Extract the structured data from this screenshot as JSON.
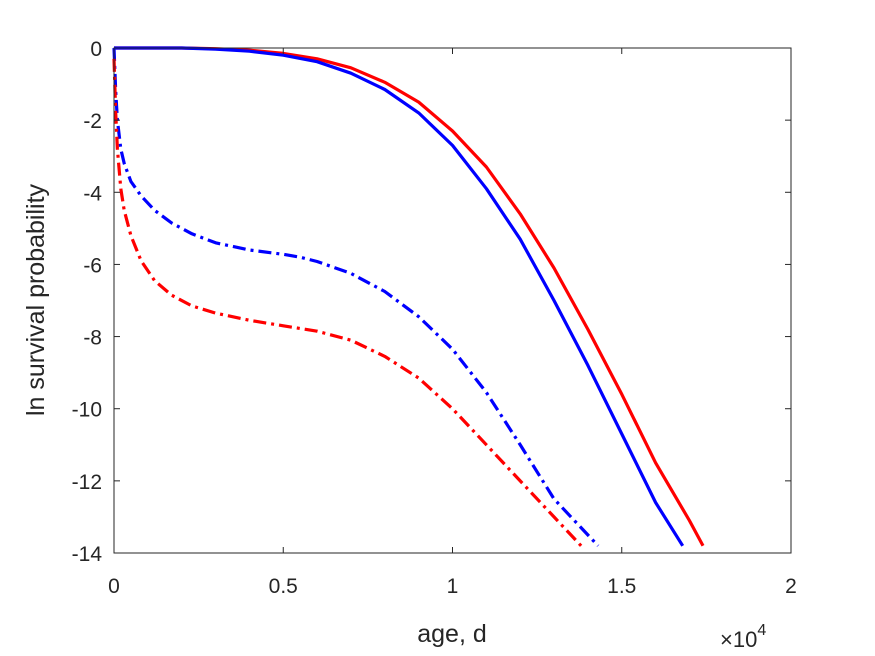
{
  "chart_data": {
    "type": "line",
    "xlabel": "age, d",
    "ylabel": "ln survival probability",
    "x_exponent_label": {
      "base": "×10",
      "power": "4"
    },
    "xlim": [
      0,
      2
    ],
    "ylim": [
      -14,
      0
    ],
    "x_ticks": [
      0,
      0.5,
      1,
      1.5,
      2
    ],
    "x_tick_labels": [
      "0",
      "0.5",
      "1",
      "1.5",
      "2"
    ],
    "y_ticks": [
      0,
      -2,
      -4,
      -6,
      -8,
      -10,
      -12,
      -14
    ],
    "y_tick_labels": [
      "0",
      "-2",
      "-4",
      "-6",
      "-8",
      "-10",
      "-12",
      "-14"
    ],
    "grid": false,
    "series": [
      {
        "color": "#ff0000",
        "style": "solid",
        "points": [
          [
            0,
            0
          ],
          [
            0.2,
            0
          ],
          [
            0.3,
            -0.02
          ],
          [
            0.4,
            -0.06
          ],
          [
            0.5,
            -0.15
          ],
          [
            0.6,
            -0.3
          ],
          [
            0.7,
            -0.55
          ],
          [
            0.8,
            -0.95
          ],
          [
            0.9,
            -1.5
          ],
          [
            1.0,
            -2.3
          ],
          [
            1.1,
            -3.3
          ],
          [
            1.2,
            -4.6
          ],
          [
            1.3,
            -6.1
          ],
          [
            1.4,
            -7.8
          ],
          [
            1.5,
            -9.6
          ],
          [
            1.6,
            -11.5
          ],
          [
            1.7,
            -13.1
          ],
          [
            1.74,
            -13.8
          ]
        ]
      },
      {
        "color": "#0000ff",
        "style": "solid",
        "points": [
          [
            0,
            0
          ],
          [
            0.2,
            0
          ],
          [
            0.3,
            -0.03
          ],
          [
            0.4,
            -0.09
          ],
          [
            0.5,
            -0.2
          ],
          [
            0.6,
            -0.38
          ],
          [
            0.7,
            -0.7
          ],
          [
            0.8,
            -1.15
          ],
          [
            0.9,
            -1.8
          ],
          [
            1.0,
            -2.7
          ],
          [
            1.1,
            -3.9
          ],
          [
            1.2,
            -5.3
          ],
          [
            1.3,
            -7.0
          ],
          [
            1.4,
            -8.8
          ],
          [
            1.5,
            -10.7
          ],
          [
            1.6,
            -12.6
          ],
          [
            1.68,
            -13.8
          ]
        ]
      },
      {
        "color": "#0000ff",
        "style": "dashdot",
        "points": [
          [
            0,
            0
          ],
          [
            0.005,
            -1.2
          ],
          [
            0.01,
            -2.0
          ],
          [
            0.02,
            -2.8
          ],
          [
            0.03,
            -3.2
          ],
          [
            0.05,
            -3.7
          ],
          [
            0.08,
            -4.1
          ],
          [
            0.12,
            -4.5
          ],
          [
            0.17,
            -4.85
          ],
          [
            0.23,
            -5.15
          ],
          [
            0.3,
            -5.4
          ],
          [
            0.4,
            -5.6
          ],
          [
            0.5,
            -5.72
          ],
          [
            0.55,
            -5.8
          ],
          [
            0.6,
            -5.92
          ],
          [
            0.7,
            -6.25
          ],
          [
            0.8,
            -6.75
          ],
          [
            0.9,
            -7.45
          ],
          [
            1.0,
            -8.35
          ],
          [
            1.1,
            -9.55
          ],
          [
            1.2,
            -11.0
          ],
          [
            1.3,
            -12.5
          ],
          [
            1.43,
            -13.8
          ]
        ]
      },
      {
        "color": "#ff0000",
        "style": "dashdot",
        "points": [
          [
            0,
            -0.3
          ],
          [
            0.005,
            -1.8
          ],
          [
            0.01,
            -2.8
          ],
          [
            0.02,
            -3.9
          ],
          [
            0.03,
            -4.5
          ],
          [
            0.05,
            -5.2
          ],
          [
            0.08,
            -5.9
          ],
          [
            0.12,
            -6.45
          ],
          [
            0.17,
            -6.85
          ],
          [
            0.23,
            -7.15
          ],
          [
            0.3,
            -7.35
          ],
          [
            0.4,
            -7.55
          ],
          [
            0.5,
            -7.7
          ],
          [
            0.6,
            -7.85
          ],
          [
            0.7,
            -8.1
          ],
          [
            0.8,
            -8.55
          ],
          [
            0.9,
            -9.15
          ],
          [
            1.0,
            -10.0
          ],
          [
            1.1,
            -11.0
          ],
          [
            1.2,
            -12.0
          ],
          [
            1.3,
            -13.0
          ],
          [
            1.38,
            -13.8
          ]
        ]
      }
    ]
  }
}
